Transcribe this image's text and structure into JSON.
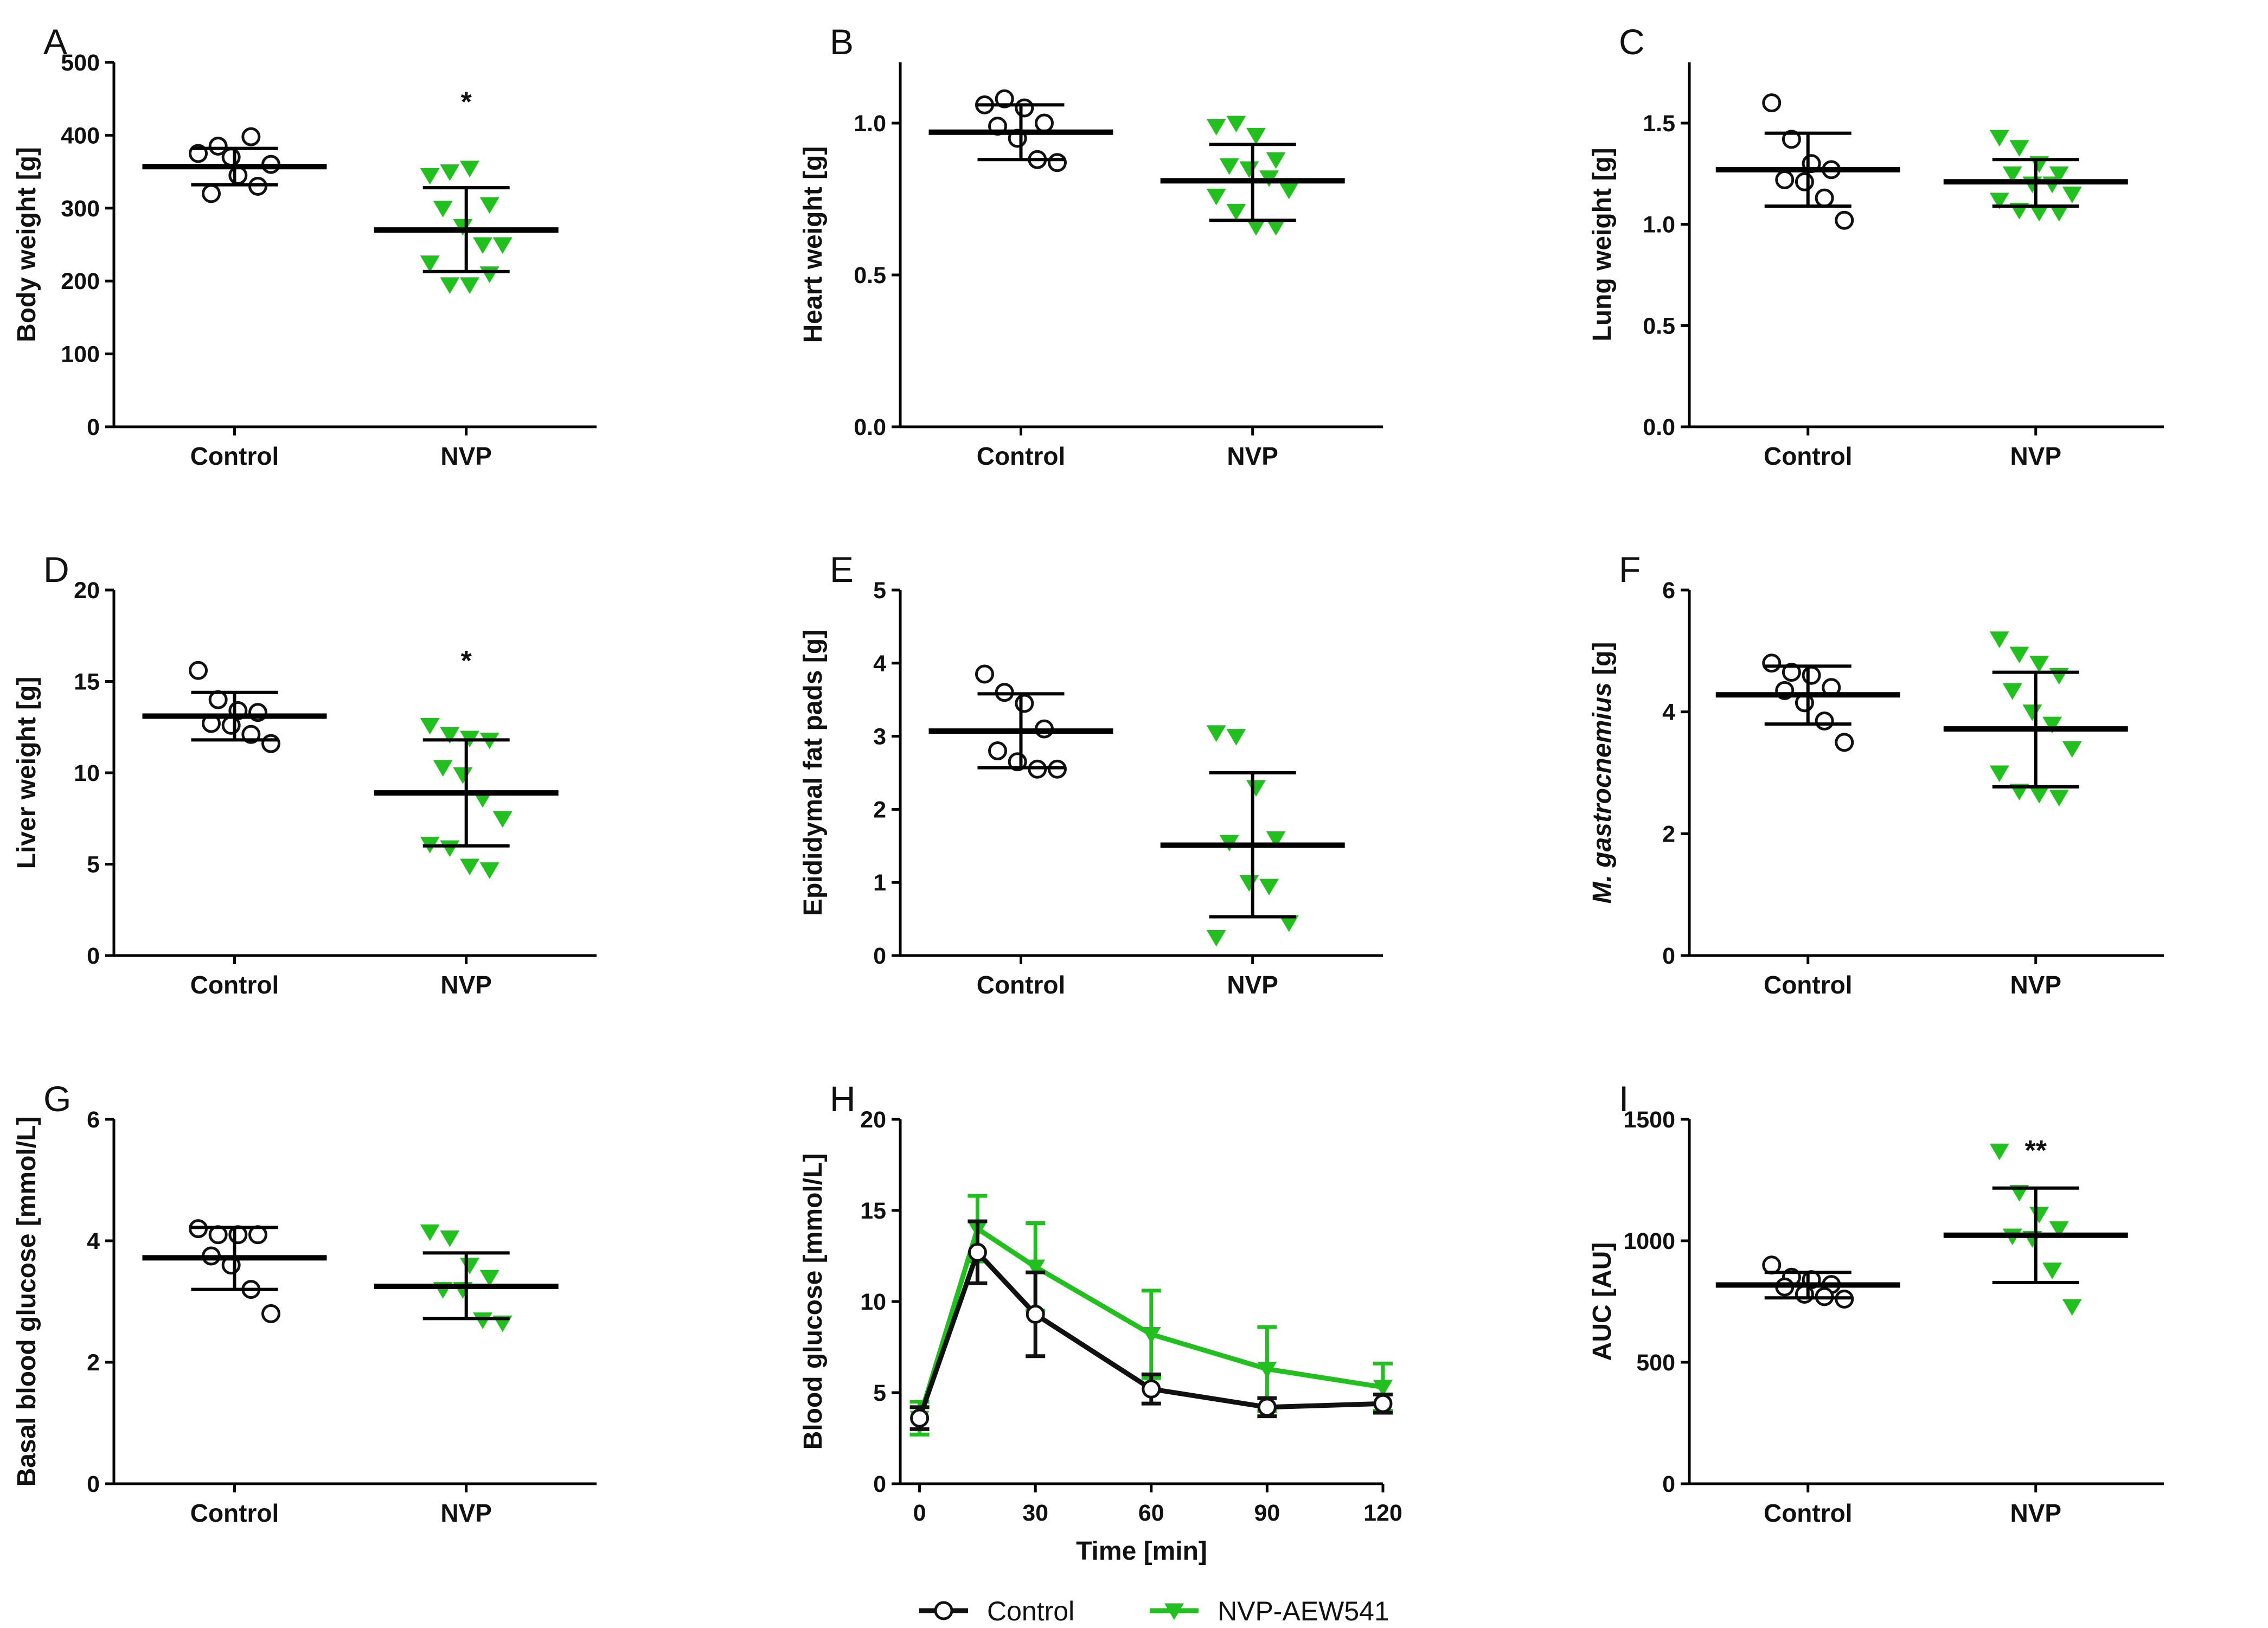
{
  "figure": {
    "legend": [
      {
        "label": "Control",
        "color": "#111111",
        "marker": "circle-open"
      },
      {
        "label": "NVP-AEW541",
        "color": "#22c01e",
        "marker": "triangle-down"
      }
    ]
  },
  "chart_data": [
    {
      "panel": "A",
      "type": "scatter",
      "ylabel": "Body weight [g]",
      "ylim": [
        0,
        500
      ],
      "yticks": [
        0,
        100,
        200,
        300,
        400,
        500
      ],
      "categories": [
        "Control",
        "NVP"
      ],
      "groups": [
        {
          "name": "Control",
          "marker": "circle-open",
          "color": "#111111",
          "points": [
            375,
            385,
            345,
            330,
            320,
            370,
            398,
            360
          ],
          "mean": 357,
          "sd_low": 332,
          "sd_high": 382
        },
        {
          "name": "NVP",
          "marker": "triangle-down",
          "color": "#22c01e",
          "points": [
            345,
            350,
            355,
            305,
            300,
            275,
            250,
            250,
            225,
            195,
            195,
            210
          ],
          "mean": 270,
          "sd_low": 213,
          "sd_high": 328
        }
      ],
      "annotations": [
        {
          "category": "NVP",
          "y": 455,
          "text": "*"
        }
      ]
    },
    {
      "panel": "B",
      "type": "scatter",
      "ylabel": "Heart weight [g]",
      "ylim": [
        0,
        1.2
      ],
      "yticks": [
        0.0,
        0.5,
        1.0
      ],
      "ytick_labels": [
        "0.0",
        "0.5",
        "1.0"
      ],
      "categories": [
        "Control",
        "NVP"
      ],
      "groups": [
        {
          "name": "Control",
          "marker": "circle-open",
          "color": "#111111",
          "points": [
            1.06,
            1.08,
            1.05,
            1.0,
            0.99,
            0.95,
            0.88,
            0.87
          ],
          "mean": 0.97,
          "sd_low": 0.88,
          "sd_high": 1.06
        },
        {
          "name": "NVP",
          "marker": "triangle-down",
          "color": "#22c01e",
          "points": [
            0.99,
            1.0,
            0.96,
            0.88,
            0.86,
            0.85,
            0.82,
            0.78,
            0.76,
            0.71,
            0.66,
            0.66
          ],
          "mean": 0.81,
          "sd_low": 0.68,
          "sd_high": 0.93
        }
      ],
      "annotations": []
    },
    {
      "panel": "C",
      "type": "scatter",
      "ylabel": "Lung weight [g]",
      "ylim": [
        0,
        1.8
      ],
      "yticks": [
        0.0,
        0.5,
        1.0,
        1.5
      ],
      "ytick_labels": [
        "0.0",
        "0.5",
        "1.0",
        "1.5"
      ],
      "categories": [
        "Control",
        "NVP"
      ],
      "groups": [
        {
          "name": "Control",
          "marker": "circle-open",
          "color": "#111111",
          "points": [
            1.6,
            1.42,
            1.3,
            1.27,
            1.22,
            1.21,
            1.13,
            1.02
          ],
          "mean": 1.27,
          "sd_low": 1.09,
          "sd_high": 1.45
        },
        {
          "name": "NVP",
          "marker": "triangle-down",
          "color": "#22c01e",
          "points": [
            1.43,
            1.38,
            1.3,
            1.25,
            1.25,
            1.2,
            1.2,
            1.15,
            1.12,
            1.07,
            1.06,
            1.06
          ],
          "mean": 1.21,
          "sd_low": 1.09,
          "sd_high": 1.32
        }
      ],
      "annotations": []
    },
    {
      "panel": "D",
      "type": "scatter",
      "ylabel": "Liver weight [g]",
      "ylim": [
        0,
        20
      ],
      "yticks": [
        0,
        5,
        10,
        15,
        20
      ],
      "categories": [
        "Control",
        "NVP"
      ],
      "groups": [
        {
          "name": "Control",
          "marker": "circle-open",
          "color": "#111111",
          "points": [
            15.6,
            14.0,
            13.4,
            13.3,
            12.7,
            12.6,
            12.1,
            11.6
          ],
          "mean": 13.1,
          "sd_low": 11.8,
          "sd_high": 14.4
        },
        {
          "name": "NVP",
          "marker": "triangle-down",
          "color": "#22c01e",
          "points": [
            12.6,
            12.1,
            11.9,
            11.8,
            10.3,
            9.9,
            8.6,
            7.5,
            6.1,
            5.9,
            4.9,
            4.7
          ],
          "mean": 8.9,
          "sd_low": 6.0,
          "sd_high": 11.8
        }
      ],
      "annotations": [
        {
          "category": "NVP",
          "y": 16.5,
          "text": "*"
        }
      ]
    },
    {
      "panel": "E",
      "type": "scatter",
      "ylabel": "Epididymal fat pads [g]",
      "ylim": [
        0,
        5
      ],
      "yticks": [
        0,
        1,
        2,
        3,
        4,
        5
      ],
      "categories": [
        "Control",
        "NVP"
      ],
      "groups": [
        {
          "name": "Control",
          "marker": "circle-open",
          "color": "#111111",
          "points": [
            3.85,
            3.6,
            3.45,
            3.1,
            2.8,
            2.65,
            2.55,
            2.55
          ],
          "mean": 3.07,
          "sd_low": 2.57,
          "sd_high": 3.58
        },
        {
          "name": "NVP",
          "marker": "triangle-down",
          "color": "#22c01e",
          "points": [
            3.05,
            3.0,
            2.3,
            1.6,
            1.55,
            1.0,
            0.95,
            0.45,
            0.25
          ],
          "mean": 1.51,
          "sd_low": 0.53,
          "sd_high": 2.5
        }
      ],
      "annotations": []
    },
    {
      "panel": "F",
      "type": "scatter",
      "ylabel": "M. gastrocnemius [g]",
      "ylabel_italic_part": "M. gastrocnemius",
      "ylabel_rest": " [g]",
      "ylim": [
        0,
        6
      ],
      "yticks": [
        0,
        2,
        4,
        6
      ],
      "categories": [
        "Control",
        "NVP"
      ],
      "groups": [
        {
          "name": "Control",
          "marker": "circle-open",
          "color": "#111111",
          "points": [
            4.8,
            4.65,
            4.6,
            4.4,
            4.35,
            4.15,
            3.85,
            3.5
          ],
          "mean": 4.28,
          "sd_low": 3.8,
          "sd_high": 4.75
        },
        {
          "name": "NVP",
          "marker": "triangle-down",
          "color": "#22c01e",
          "points": [
            5.2,
            4.95,
            4.8,
            4.6,
            4.35,
            4.0,
            3.8,
            3.4,
            3.0,
            2.7,
            2.65,
            2.6
          ],
          "mean": 3.72,
          "sd_low": 2.77,
          "sd_high": 4.65
        }
      ],
      "annotations": []
    },
    {
      "panel": "G",
      "type": "scatter",
      "ylabel": "Basal blood glucose [mmol/L]",
      "ylim": [
        0,
        6
      ],
      "yticks": [
        0,
        2,
        4,
        6
      ],
      "categories": [
        "Control",
        "NVP"
      ],
      "groups": [
        {
          "name": "Control",
          "marker": "circle-open",
          "color": "#111111",
          "points": [
            4.2,
            4.1,
            4.1,
            4.1,
            3.75,
            3.6,
            3.2,
            2.8
          ],
          "mean": 3.72,
          "sd_low": 3.2,
          "sd_high": 4.22
        },
        {
          "name": "NVP",
          "marker": "triangle-down",
          "color": "#22c01e",
          "points": [
            4.15,
            4.05,
            3.6,
            3.4,
            3.2,
            3.2,
            2.7,
            2.65
          ],
          "mean": 3.25,
          "sd_low": 2.72,
          "sd_high": 3.8
        }
      ],
      "annotations": []
    },
    {
      "panel": "H",
      "type": "line",
      "xlabel": "Time [min]",
      "ylabel": "Blood glucose [mmol/L]",
      "x": [
        0,
        15,
        30,
        60,
        90,
        120
      ],
      "xlim": [
        -5,
        120
      ],
      "xticks": [
        0,
        30,
        60,
        90,
        120
      ],
      "ylim": [
        0,
        20
      ],
      "yticks": [
        0,
        5,
        10,
        15,
        20
      ],
      "series": [
        {
          "name": "Control",
          "color": "#111111",
          "marker": "circle-open",
          "values": [
            3.6,
            12.7,
            9.3,
            5.2,
            4.2,
            4.4
          ],
          "err": [
            0.6,
            1.7,
            2.3,
            0.8,
            0.5,
            0.5
          ]
        },
        {
          "name": "NVP-AEW541",
          "color": "#22c01e",
          "marker": "triangle-down",
          "values": [
            3.6,
            14.0,
            11.9,
            8.2,
            6.3,
            5.3
          ],
          "err": [
            0.9,
            1.8,
            2.4,
            2.4,
            2.3,
            1.3
          ]
        }
      ],
      "legend": "bottom-center"
    },
    {
      "panel": "I",
      "type": "scatter",
      "ylabel": "AUC [AU]",
      "ylim": [
        0,
        1500
      ],
      "yticks": [
        0,
        500,
        1000,
        1500
      ],
      "categories": [
        "Control",
        "NVP"
      ],
      "groups": [
        {
          "name": "Control",
          "marker": "circle-open",
          "color": "#111111",
          "points": [
            900,
            850,
            840,
            820,
            810,
            780,
            770,
            760
          ],
          "mean": 818,
          "sd_low": 765,
          "sd_high": 870
        },
        {
          "name": "NVP",
          "marker": "triangle-down",
          "color": "#22c01e",
          "points": [
            1370,
            1200,
            1110,
            1050,
            1020,
            1010,
            880,
            730
          ],
          "mean": 1023,
          "sd_low": 828,
          "sd_high": 1217
        }
      ],
      "annotations": [
        {
          "category": "NVP",
          "y": 1400,
          "text": "**"
        }
      ]
    }
  ]
}
